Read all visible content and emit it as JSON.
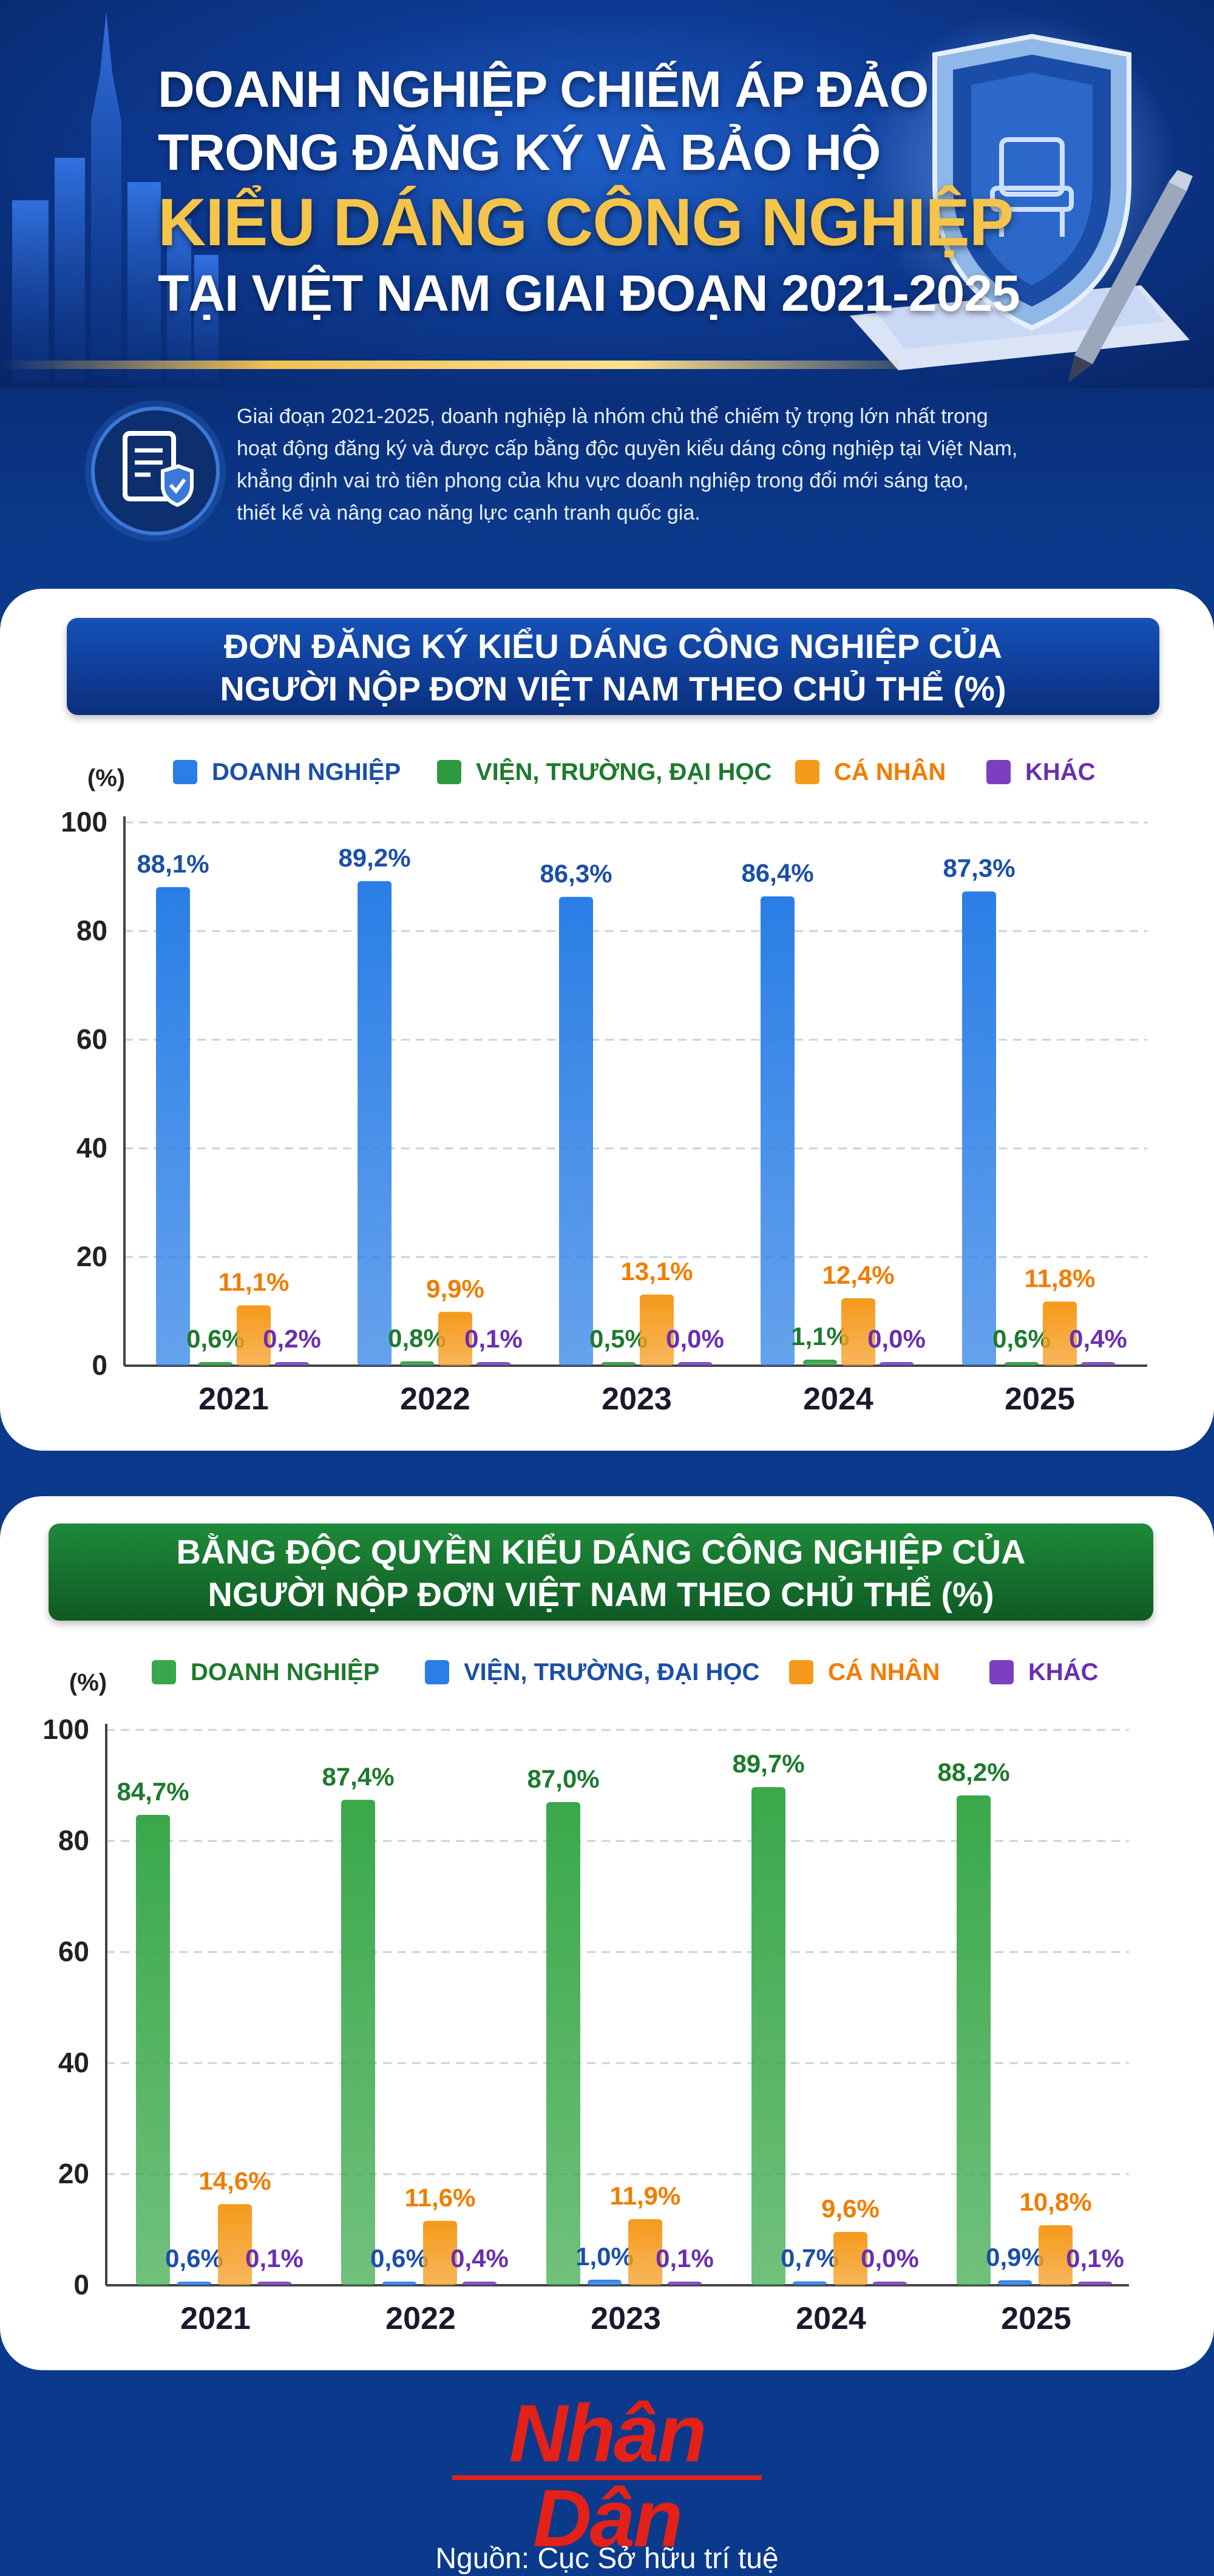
{
  "header": {
    "title_lines": [
      "DOANH NGHIỆP CHIẾM ÁP ĐẢO",
      "TRONG ĐĂNG KÝ VÀ BẢO HỘ",
      "KIỂU DÁNG CÔNG NGHIỆP",
      "TẠI VIỆT NAM GIAI ĐOẠN 2021-2025"
    ],
    "intro_lines": [
      "Giai đoạn 2021-2025, doanh nghiệp là nhóm chủ thể chiếm tỷ trọng lớn nhất trong",
      "hoạt động đăng ký và được cấp bằng độc quyền kiểu dáng công nghiệp tại Việt Nam,",
      "khẳng định vai trò tiên phong của khu vực doanh nghiệp trong đổi mới sáng tạo,",
      "thiết kế và nâng cao năng lực cạnh tranh quốc gia."
    ]
  },
  "chart_data": [
    {
      "type": "bar",
      "title_lines": [
        "ĐƠN ĐĂNG KÝ KIỂU DÁNG CÔNG NGHIỆP CỦA",
        "NGƯỜI NỘP ĐƠN VIỆT NAM THEO CHỦ THỂ (%)"
      ],
      "ylabel": "(%)",
      "ylim": [
        0,
        100
      ],
      "yticks": [
        "0",
        "20",
        "40",
        "60",
        "80",
        "100"
      ],
      "categories": [
        "2021",
        "2022",
        "2023",
        "2024",
        "2025"
      ],
      "legend_placement": "top",
      "series": [
        {
          "name": "DOANH NGHIỆP",
          "color": "#2a7ee6",
          "text_color": "#1b4fa8",
          "values": [
            88.1,
            89.2,
            86.3,
            86.4,
            87.3
          ],
          "labels": [
            "88,1%",
            "89,2%",
            "86,3%",
            "86,4%",
            "87,3%"
          ]
        },
        {
          "name": "VIỆN, TRƯỜNG, ĐẠI HỌC",
          "color": "#2e9a3f",
          "text_color": "#1e7a2e",
          "values": [
            0.6,
            0.8,
            0.5,
            1.1,
            0.6
          ],
          "labels": [
            "0,6%",
            "0,8%",
            "0,5%",
            "1,1%",
            "0,6%"
          ]
        },
        {
          "name": "CÁ NHÂN",
          "color": "#f59a1b",
          "text_color": "#f07d00",
          "values": [
            11.1,
            9.9,
            13.1,
            12.4,
            11.8
          ],
          "labels": [
            "11,1%",
            "9,9%",
            "13,1%",
            "12,4%",
            "11,8%"
          ]
        },
        {
          "name": "KHÁC",
          "color": "#7b3fbf",
          "text_color": "#6a2fb0",
          "values": [
            0.2,
            0.1,
            0.0,
            0.0,
            0.4
          ],
          "labels": [
            "0,2%",
            "0,1%",
            "0,0%",
            "0,0%",
            "0,4%"
          ]
        }
      ]
    },
    {
      "type": "bar",
      "title_lines": [
        "BẰNG ĐỘC QUYỀN KIỂU DÁNG CÔNG NGHIỆP CỦA",
        "NGƯỜI NỘP ĐƠN VIỆT NAM THEO CHỦ THỂ (%)"
      ],
      "ylabel": "(%)",
      "ylim": [
        0,
        100
      ],
      "yticks": [
        "0",
        "20",
        "40",
        "60",
        "80",
        "100"
      ],
      "categories": [
        "2021",
        "2022",
        "2023",
        "2024",
        "2025"
      ],
      "legend_placement": "top",
      "series": [
        {
          "name": "DOANH NGHIỆP",
          "color": "#3aa84a",
          "text_color": "#1e7a2e",
          "values": [
            84.7,
            87.4,
            87.0,
            89.7,
            88.2
          ],
          "labels": [
            "84,7%",
            "87,4%",
            "87,0%",
            "89,7%",
            "88,2%"
          ]
        },
        {
          "name": "VIỆN, TRƯỜNG, ĐẠI HỌC",
          "color": "#2a7ee6",
          "text_color": "#1b4fa8",
          "values": [
            0.6,
            0.6,
            1.0,
            0.7,
            0.9
          ],
          "labels": [
            "0,6%",
            "0,6%",
            "1,0%",
            "0,7%",
            "0,9%"
          ]
        },
        {
          "name": "CÁ NHÂN",
          "color": "#f59a1b",
          "text_color": "#f07d00",
          "values": [
            14.6,
            11.6,
            11.9,
            9.6,
            10.8
          ],
          "labels": [
            "14,6%",
            "11,6%",
            "11,9%",
            "9,6%",
            "10,8%"
          ]
        },
        {
          "name": "KHÁC",
          "color": "#7b3fbf",
          "text_color": "#6a2fb0",
          "values": [
            0.1,
            0.4,
            0.1,
            0.0,
            0.1
          ],
          "labels": [
            "0,1%",
            "0,4%",
            "0,1%",
            "0,0%",
            "0,1%"
          ]
        }
      ]
    }
  ],
  "footer": {
    "logo_text": "Nhân Dân",
    "source": "Nguồn: Cục Sở hữu trí tuệ"
  },
  "icons": [
    "city-skyline-icon",
    "shield-chair-icon",
    "pen-icon",
    "document-shield-icon"
  ]
}
